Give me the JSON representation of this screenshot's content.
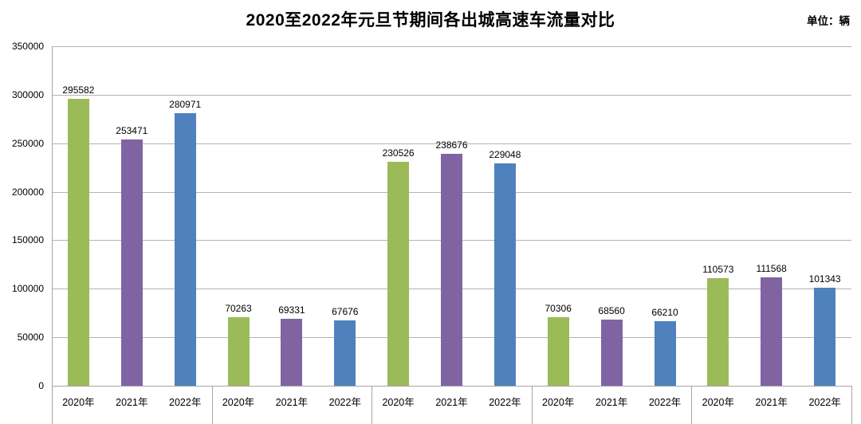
{
  "title": "2020至2022年元旦节期间各出城高速车流量对比",
  "unit_label": "单位：辆",
  "chart_data": {
    "type": "bar",
    "title": "2020至2022年元旦节期间各出城高速车流量对比",
    "unit": "单位：辆",
    "xlabel": "",
    "ylabel": "",
    "ylim": [
      0,
      350000
    ],
    "ytick_step": 50000,
    "y_tick_labels": [
      "0",
      "50000",
      "100000",
      "150000",
      "200000",
      "250000",
      "300000",
      "350000"
    ],
    "grid": true,
    "legend": "none",
    "x_tick_labels_per_group": [
      "2020年",
      "2021年",
      "2022年"
    ],
    "series_colors": [
      "#9bbb59",
      "#8064a2",
      "#4f81bd"
    ],
    "groups": [
      {
        "values": [
          295582,
          253471,
          280971
        ]
      },
      {
        "values": [
          70263,
          69331,
          67676
        ]
      },
      {
        "values": [
          230526,
          238676,
          229048
        ]
      },
      {
        "values": [
          70306,
          68560,
          66210
        ]
      },
      {
        "values": [
          110573,
          111568,
          101343
        ]
      }
    ]
  }
}
